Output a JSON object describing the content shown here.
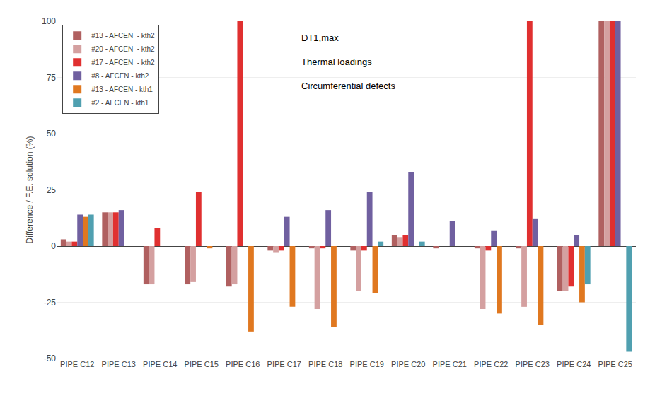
{
  "chart_data": {
    "type": "bar",
    "categories": [
      "PIPE C12",
      "PIPE C13",
      "PIPE C14",
      "PIPE C15",
      "PIPE C16",
      "PIPE C17",
      "PIPE C18",
      "PIPE C19",
      "PIPE C20",
      "PIPE C21",
      "PIPE C22",
      "PIPE C23",
      "PIPE C24",
      "PIPE C25"
    ],
    "series": [
      {
        "name": "#13 - AFCEN  - kth2",
        "color": "#b06060",
        "values": [
          3,
          15,
          -17,
          -17,
          -18,
          -2,
          -1,
          -2,
          5,
          -1,
          -1,
          -1,
          -20,
          100
        ]
      },
      {
        "name": "#20 - AFCEN  - kth2",
        "color": "#d4a0a0",
        "values": [
          2,
          15,
          -17,
          -16,
          -17,
          -3,
          -28,
          -20,
          4,
          0,
          -28,
          -27,
          -20,
          100
        ]
      },
      {
        "name": "#17 - AFCEN  - kth2",
        "color": "#e03030",
        "values": [
          2,
          15,
          8,
          24,
          100,
          -2,
          -1,
          -2,
          5,
          0,
          -2,
          100,
          -18,
          100
        ]
      },
      {
        "name": "#8 - AFCEN - kth2",
        "color": "#7060a0",
        "values": [
          14,
          16,
          0,
          0,
          0,
          13,
          16,
          24,
          33,
          11,
          7,
          12,
          5,
          100
        ]
      },
      {
        "name": "#13 - AFCEN - kth1",
        "color": "#e07820",
        "values": [
          13,
          0,
          0,
          -1,
          -38,
          -27,
          -36,
          -21,
          0,
          0,
          -30,
          -35,
          -25,
          0
        ]
      },
      {
        "name": "#2 - AFCEN - kth1",
        "color": "#50a0b0",
        "values": [
          14,
          0,
          0,
          0,
          0,
          0,
          0,
          2,
          2,
          0,
          0,
          0,
          -17,
          -47
        ]
      }
    ],
    "annotation": "DT1,max\n\nThermal loadings\n\nCircumferential defects",
    "ylabel": "Difference / F.E. solution (%)",
    "ylim": [
      -50,
      100
    ],
    "yticks": [
      -50,
      -25,
      0,
      25,
      50,
      75,
      100
    ],
    "grid": true,
    "legend": "upper left"
  }
}
